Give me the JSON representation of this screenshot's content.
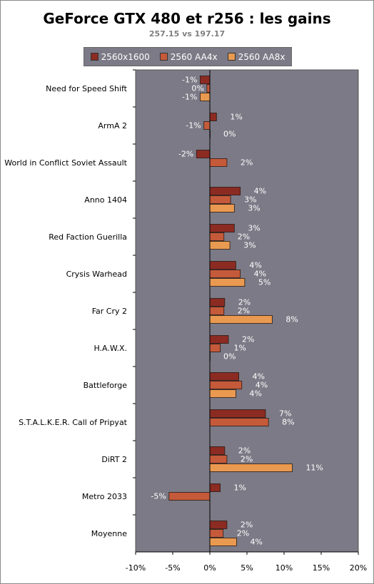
{
  "chart_data": {
    "type": "bar",
    "orientation": "horizontal",
    "title": "GeForce GTX 480 et r256 : les gains",
    "subtitle": "257.15 vs 197.17",
    "categories": [
      "Need for Speed Shift",
      "ArmA 2",
      "World in Conflict Soviet Assault",
      "Anno 1404",
      "Red Faction Guerilla",
      "Crysis Warhead",
      "Far Cry 2",
      "H.A.W.X.",
      "Battleforge",
      "S.T.A.L.K.E.R. Call of Pripyat",
      "DiRT 2",
      "Metro 2033",
      "Moyenne"
    ],
    "series": [
      {
        "name": "2560x1600",
        "color": "#8b2b22",
        "values": [
          -1.3,
          0.9,
          -1.8,
          4.1,
          3.3,
          3.5,
          2.0,
          2.5,
          3.9,
          7.5,
          2.0,
          1.4,
          2.3
        ],
        "labels": [
          "-1%",
          "1%",
          "-2%",
          "4%",
          "3%",
          "4%",
          "2%",
          "2%",
          "4%",
          "7%",
          "2%",
          "1%",
          "2%"
        ]
      },
      {
        "name": "2560 AA4x",
        "color": "#c55a3a",
        "values": [
          -0.4,
          -0.8,
          2.3,
          2.8,
          1.9,
          4.1,
          1.9,
          1.4,
          4.3,
          7.9,
          2.3,
          -5.5,
          1.8
        ],
        "labels": [
          "0%",
          "-1%",
          "2%",
          "3%",
          "2%",
          "4%",
          "2%",
          "1%",
          "4%",
          "8%",
          "2%",
          "-5%",
          "2%"
        ]
      },
      {
        "name": "2560 AA8x",
        "color": "#e99a50",
        "values": [
          -1.3,
          0.0,
          null,
          3.3,
          2.7,
          4.7,
          8.4,
          0.0,
          3.5,
          null,
          11.1,
          null,
          3.6
        ],
        "labels": [
          "-1%",
          "0%",
          null,
          "3%",
          "3%",
          "5%",
          "8%",
          "0%",
          "4%",
          null,
          "11%",
          null,
          "4%"
        ]
      }
    ],
    "xlim": [
      -10,
      20
    ],
    "x_ticks": [
      -10,
      -5,
      0,
      5,
      10,
      15,
      20
    ],
    "x_tick_labels": [
      "-10%",
      "-5%",
      "0%",
      "5%",
      "10%",
      "15%",
      "20%"
    ],
    "grid": false,
    "legend_position": "top",
    "plot_background": "#7b7a86",
    "label_color": "#ffffff"
  }
}
